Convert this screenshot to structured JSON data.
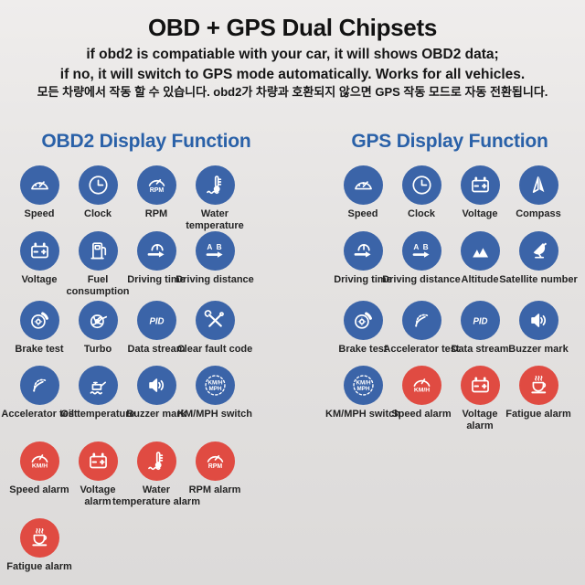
{
  "header": {
    "title": "OBD + GPS Dual Chipsets",
    "subtitle_line1": "if obd2 is compatiable with your car, it will shows OBD2 data;",
    "subtitle_line2": "if no, it will switch to GPS mode automatically. Works for all vehicles.",
    "subtitle_korean": "모든 차량에서 작동 할 수 있습니다. obd2가 차량과 호환되지 않으면 GPS 작동 모드로 자동 전환됩니다."
  },
  "colors": {
    "heading_blue": "#2a61a8",
    "icon_blue": "#3b64a8",
    "icon_red": "#e04b42"
  },
  "obd2_section": {
    "heading": "OBD2 Display Function",
    "rows": [
      [
        {
          "label": "Speed",
          "icon": "speedometer-icon",
          "color": "blue"
        },
        {
          "label": "Clock",
          "icon": "clock-icon",
          "color": "blue"
        },
        {
          "label": "RPM",
          "icon": "rpm-gauge-icon",
          "color": "blue"
        },
        {
          "label": "Water\ntemperature",
          "icon": "water-thermometer-icon",
          "color": "blue"
        }
      ],
      [
        {
          "label": "Voltage",
          "icon": "battery-icon",
          "color": "blue"
        },
        {
          "label": "Fuel\nconsumption",
          "icon": "fuel-pump-icon",
          "color": "blue"
        },
        {
          "label": "Driving time",
          "icon": "driving-time-icon",
          "color": "blue"
        },
        {
          "label": "Driving distance",
          "icon": "driving-distance-icon",
          "color": "blue"
        }
      ],
      [
        {
          "label": "Brake test",
          "icon": "brake-disc-icon",
          "color": "blue"
        },
        {
          "label": "Turbo",
          "icon": "turbo-icon",
          "color": "blue"
        },
        {
          "label": "Data stream",
          "icon": "pid-icon",
          "color": "blue"
        },
        {
          "label": "Clear fault code",
          "icon": "repair-tools-icon",
          "color": "blue"
        }
      ],
      [
        {
          "label": "Accelerator test",
          "icon": "accelerator-gauge-icon",
          "color": "blue"
        },
        {
          "label": "Oil temperature",
          "icon": "oil-can-icon",
          "color": "blue"
        },
        {
          "label": "Buzzer mark",
          "icon": "speaker-icon",
          "color": "blue"
        },
        {
          "label": "KM/MPH switch",
          "icon": "kmh-mph-switch-icon",
          "color": "blue"
        }
      ],
      [
        {
          "label": "Speed alarm",
          "icon": "kmh-gauge-icon",
          "color": "red"
        },
        {
          "label": "Voltage\nalarm",
          "icon": "battery-icon",
          "color": "red"
        },
        {
          "label": "Water\ntemperature alarm",
          "icon": "water-thermometer-icon",
          "color": "red"
        },
        {
          "label": "RPM alarm",
          "icon": "rpm-gauge-icon",
          "color": "red"
        }
      ],
      [
        {
          "label": "Fatigue alarm",
          "icon": "coffee-cup-icon",
          "color": "red"
        }
      ]
    ]
  },
  "gps_section": {
    "heading": "GPS Display Function",
    "rows": [
      [
        {
          "label": "Speed",
          "icon": "speedometer-icon",
          "color": "blue"
        },
        {
          "label": "Clock",
          "icon": "clock-icon",
          "color": "blue"
        },
        {
          "label": "Voltage",
          "icon": "battery-icon",
          "color": "blue"
        },
        {
          "label": "Compass",
          "icon": "compass-icon",
          "color": "blue"
        }
      ],
      [
        {
          "label": "Driving time",
          "icon": "driving-time-icon",
          "color": "blue"
        },
        {
          "label": "Driving distance",
          "icon": "driving-distance-icon",
          "color": "blue"
        },
        {
          "label": "Altitude",
          "icon": "mountains-icon",
          "color": "blue"
        },
        {
          "label": "Satellite number",
          "icon": "satellite-dish-icon",
          "color": "blue"
        }
      ],
      [
        {
          "label": "Brake test",
          "icon": "brake-disc-icon",
          "color": "blue"
        },
        {
          "label": "Accelerator test",
          "icon": "accelerator-gauge-icon",
          "color": "blue"
        },
        {
          "label": "Data stream",
          "icon": "pid-icon",
          "color": "blue"
        },
        {
          "label": "Buzzer mark",
          "icon": "speaker-icon",
          "color": "blue"
        }
      ],
      [
        {
          "label": "KM/MPH switch",
          "icon": "kmh-mph-switch-icon",
          "color": "blue"
        },
        {
          "label": "Speed alarm",
          "icon": "kmh-gauge-icon",
          "color": "red"
        },
        {
          "label": "Voltage\nalarm",
          "icon": "battery-icon",
          "color": "red"
        },
        {
          "label": "Fatigue alarm",
          "icon": "coffee-cup-icon",
          "color": "red"
        }
      ]
    ]
  }
}
